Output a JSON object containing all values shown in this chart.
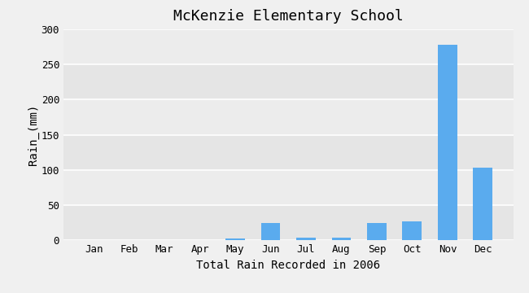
{
  "title": "McKenzie Elementary School",
  "xlabel": "Total Rain Recorded in 2006",
  "ylabel": "Rain_(mm)",
  "months": [
    "Jan",
    "Feb",
    "Mar",
    "Apr",
    "May",
    "Jun",
    "Jul",
    "Aug",
    "Sep",
    "Oct",
    "Nov",
    "Dec"
  ],
  "values": [
    0,
    0,
    0,
    0,
    3,
    25,
    4,
    4,
    25,
    27,
    278,
    103
  ],
  "bar_color": "#5aabee",
  "ylim": [
    0,
    300
  ],
  "yticks": [
    0,
    50,
    100,
    150,
    200,
    250,
    300
  ],
  "plot_bg_color": "#ececec",
  "fig_bg_color": "#f0f0f0",
  "grid_color": "#ffffff",
  "title_fontsize": 13,
  "label_fontsize": 10,
  "tick_fontsize": 9,
  "bar_width": 0.55
}
